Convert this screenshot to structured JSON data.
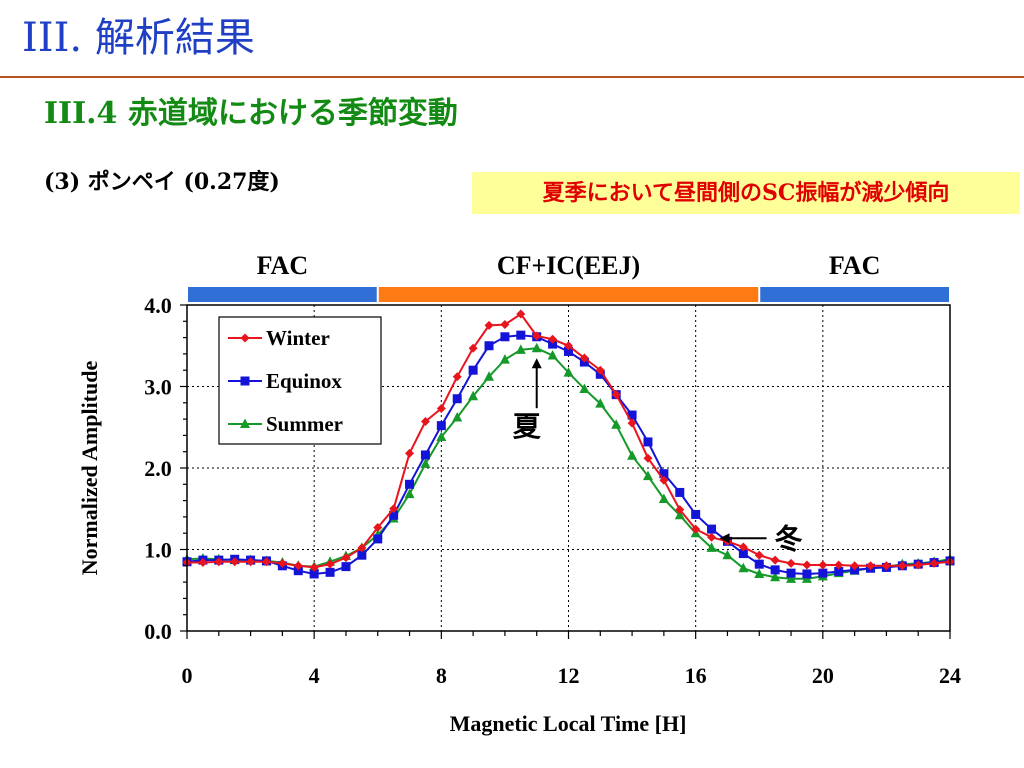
{
  "slide": {
    "title": "III. 解析結果",
    "subtitle": "III.4 赤道域における季節変動",
    "station": "(3) ポンペイ (0.27度)",
    "note": "夏季において昼間側のSC振幅が減少傾向"
  },
  "colors": {
    "title": "#1f3fc4",
    "subtitle": "#138a13",
    "rule": "#b4531f",
    "note_text": "#e10000",
    "note_bg": "#ffff99",
    "fac_band": "#2f6fd6",
    "cf_band": "#ff7a12"
  },
  "bands": [
    {
      "label": "FAC",
      "from": 0,
      "to": 6
    },
    {
      "label": "CF+IC(EEJ)",
      "from": 6,
      "to": 18
    },
    {
      "label": "FAC",
      "from": 18,
      "to": 24
    }
  ],
  "chart_data": {
    "type": "line",
    "title": "",
    "xlabel": "Magnetic Local Time [H]",
    "ylabel": "Normalized Amplitude",
    "xlim": [
      0,
      24
    ],
    "ylim": [
      0.0,
      4.0
    ],
    "xticks": [
      "0",
      "4",
      "8",
      "12",
      "16",
      "20",
      "24"
    ],
    "yticks": [
      "0.0",
      "1.0",
      "2.0",
      "3.0",
      "4.0"
    ],
    "grid": true,
    "legend_position": "top-left",
    "x": [
      0,
      0.5,
      1,
      1.5,
      2,
      2.5,
      3,
      3.5,
      4,
      4.5,
      5,
      5.5,
      6,
      6.5,
      7,
      7.5,
      8,
      8.5,
      9,
      9.5,
      10,
      10.5,
      11,
      11.5,
      12,
      12.5,
      13,
      13.5,
      14,
      14.5,
      15,
      15.5,
      16,
      16.5,
      17,
      17.5,
      18,
      18.5,
      19,
      19.5,
      20,
      20.5,
      21,
      21.5,
      22,
      22.5,
      23,
      23.5,
      24
    ],
    "series": [
      {
        "name": "Winter",
        "color": "#e8141e",
        "marker": "diamond",
        "values": [
          0.84,
          0.84,
          0.85,
          0.85,
          0.85,
          0.85,
          0.83,
          0.8,
          0.78,
          0.82,
          0.9,
          1.02,
          1.27,
          1.5,
          2.18,
          2.57,
          2.73,
          3.12,
          3.47,
          3.75,
          3.76,
          3.89,
          3.62,
          3.58,
          3.5,
          3.35,
          3.2,
          2.9,
          2.55,
          2.12,
          1.85,
          1.49,
          1.25,
          1.15,
          1.1,
          1.03,
          0.93,
          0.87,
          0.83,
          0.81,
          0.81,
          0.81,
          0.8,
          0.8,
          0.8,
          0.8,
          0.81,
          0.83,
          0.85
        ]
      },
      {
        "name": "Equinox",
        "color": "#1414d8",
        "marker": "square",
        "values": [
          0.85,
          0.87,
          0.87,
          0.88,
          0.87,
          0.86,
          0.8,
          0.74,
          0.7,
          0.72,
          0.79,
          0.93,
          1.13,
          1.42,
          1.8,
          2.16,
          2.52,
          2.85,
          3.2,
          3.5,
          3.61,
          3.63,
          3.61,
          3.52,
          3.43,
          3.3,
          3.15,
          2.9,
          2.65,
          2.32,
          1.93,
          1.7,
          1.43,
          1.25,
          1.1,
          0.95,
          0.82,
          0.75,
          0.71,
          0.7,
          0.71,
          0.73,
          0.75,
          0.77,
          0.78,
          0.8,
          0.82,
          0.84,
          0.86
        ]
      },
      {
        "name": "Summer",
        "color": "#159a2a",
        "marker": "triangle",
        "values": [
          0.88,
          0.89,
          0.88,
          0.87,
          0.87,
          0.86,
          0.84,
          0.8,
          0.79,
          0.85,
          0.92,
          1.02,
          1.18,
          1.38,
          1.68,
          2.05,
          2.38,
          2.62,
          2.88,
          3.12,
          3.33,
          3.45,
          3.47,
          3.38,
          3.17,
          2.97,
          2.79,
          2.53,
          2.15,
          1.9,
          1.62,
          1.42,
          1.2,
          1.02,
          0.93,
          0.77,
          0.7,
          0.66,
          0.64,
          0.64,
          0.67,
          0.71,
          0.74,
          0.77,
          0.79,
          0.82,
          0.83,
          0.85,
          0.88
        ]
      }
    ],
    "annotations": [
      {
        "text": "夏",
        "series": "Summer",
        "x": 11,
        "arrow": "up"
      },
      {
        "text": "冬",
        "series": "Winter",
        "x": 16.5,
        "arrow": "left"
      }
    ]
  }
}
